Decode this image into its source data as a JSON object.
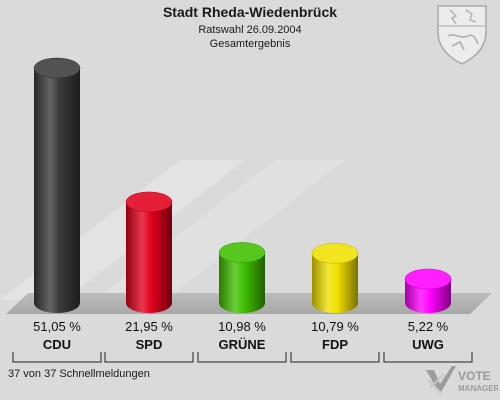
{
  "header": {
    "title": "Stadt Rheda-Wiedenbrück",
    "subtitle": "Ratswahl 26.09.2004",
    "subtitle2": "Gesamtergebnis"
  },
  "footer": {
    "status": "37 von 37 Schnellmeldungen",
    "logo_line1": "VOTE",
    "logo_line2": "MANAGER"
  },
  "chart_data": {
    "type": "bar",
    "categories": [
      "CDU",
      "SPD",
      "GRÜNE",
      "FDP",
      "UWG"
    ],
    "values": [
      51.05,
      21.95,
      10.98,
      10.79,
      5.22
    ],
    "labels": [
      "51,05 %",
      "21,95 %",
      "10,98 %",
      "10,79 %",
      "5,22 %"
    ],
    "colors": [
      "#3a3a3a",
      "#e0001c",
      "#3fbf00",
      "#f0e000",
      "#ff00ff"
    ],
    "ylim": [
      0,
      51.05
    ],
    "grid": false,
    "legend": "none"
  },
  "icons": {
    "crest": "coat-of-arms-icon",
    "logo": "vote-manager-logo-icon"
  }
}
